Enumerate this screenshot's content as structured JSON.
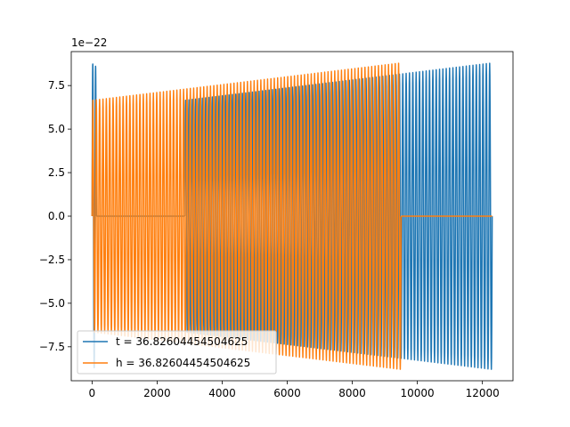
{
  "chart_data": {
    "type": "line",
    "title": "",
    "xlabel": "",
    "ylabel": "",
    "y_multiplier": "1e−22",
    "xlim": [
      -640,
      12940
    ],
    "ylim": [
      -9.45,
      9.45
    ],
    "x_ticks": [
      0,
      2000,
      4000,
      6000,
      8000,
      10000,
      12000
    ],
    "x_tick_labels": [
      "0",
      "2000",
      "4000",
      "6000",
      "8000",
      "10000",
      "12000"
    ],
    "y_ticks": [
      -7.5,
      -5.0,
      -2.5,
      0.0,
      2.5,
      5.0,
      7.5
    ],
    "y_tick_labels": [
      "−7.5",
      "−5.0",
      "−2.5",
      "0.0",
      "2.5",
      "5.0",
      "7.5"
    ],
    "grid": false,
    "legend_position": "lower-left",
    "series": [
      {
        "name": "t = 36.82604454504625",
        "color": "#1f77b4",
        "segments": [
          {
            "kind": "osc",
            "x_start": 0,
            "x_end": 130,
            "amp_start": 8.8,
            "amp_end": 8.6,
            "cycles": 1.5
          },
          {
            "kind": "flat",
            "x_start": 130,
            "x_end": 2850,
            "value": 0.0
          },
          {
            "kind": "osc",
            "x_start": 2850,
            "x_end": 12300,
            "amp_start": 6.65,
            "amp_end": 8.8,
            "cycles": 92
          }
        ]
      },
      {
        "name": "h = 36.82604454504625",
        "color": "#ff7f0e",
        "segments": [
          {
            "kind": "osc",
            "x_start": 0,
            "x_end": 9500,
            "amp_start": 6.65,
            "amp_end": 8.8,
            "cycles": 92
          },
          {
            "kind": "flat",
            "x_start": 9500,
            "x_end": 12300,
            "value": 0.0
          }
        ]
      }
    ]
  }
}
